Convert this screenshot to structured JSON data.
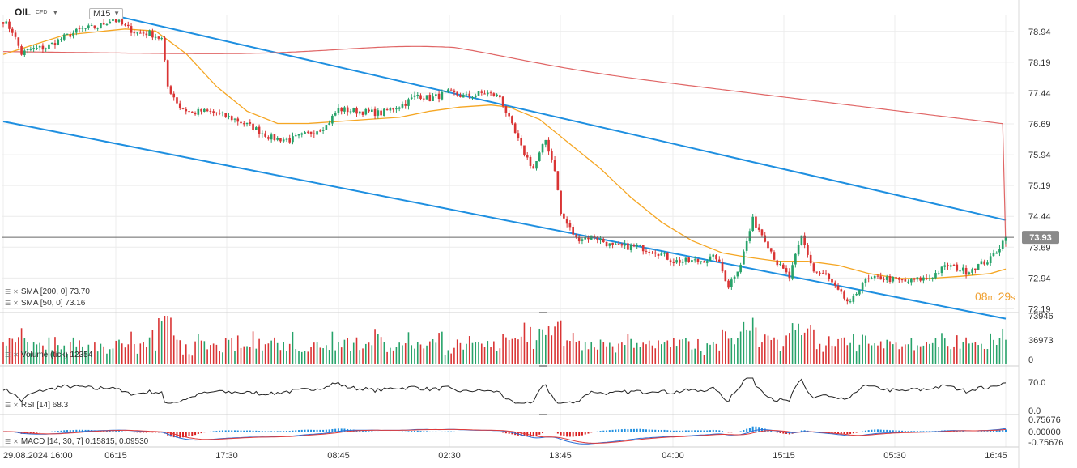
{
  "header": {
    "symbol": "OIL",
    "instrument_type": "CFD",
    "timeframe": "M15"
  },
  "price_badge": "73.93",
  "countdown": {
    "minutes": "08",
    "m": "m",
    "seconds": "29",
    "s": "s"
  },
  "legends": {
    "sma200": "SMA [200, 0] 73.70",
    "sma50": "SMA [50, 0] 73.16",
    "volume": "Volume (tick) 12354",
    "rsi": "RSI [14] 68.3",
    "macd": "MACD [14, 30, 7] 0.15815, 0.09530"
  },
  "colors": {
    "up": "#26a269",
    "down": "#d93434",
    "sma50": "#f5a623",
    "sma200": "#e06666",
    "channel": "#1e8fe0",
    "price_line": "#666666",
    "badge": "#8a8a8a"
  },
  "chart_data": [
    {
      "type": "candlestick",
      "title": "OIL CFD",
      "timeframe": "M15",
      "x_tick_labels": [
        "29.08.2024 16:00",
        "06:15",
        "17:30",
        "08:45",
        "02:30",
        "13:45",
        "04:00",
        "15:15",
        "05:30",
        "16:45"
      ],
      "y_tick_labels": [
        "78.94",
        "78.19",
        "77.44",
        "76.69",
        "75.94",
        "75.19",
        "74.44",
        "73.69",
        "72.94",
        "72.19"
      ],
      "ylim": [
        72.1,
        79.35
      ],
      "last_price": 73.93,
      "anchors": [
        [
          0,
          79.2
        ],
        [
          3,
          78.95
        ],
        [
          6,
          78.4
        ],
        [
          9,
          78.5
        ],
        [
          14,
          78.55
        ],
        [
          20,
          78.8
        ],
        [
          26,
          79.0
        ],
        [
          31,
          79.05
        ],
        [
          36,
          79.25
        ],
        [
          40,
          79.05
        ],
        [
          44,
          78.9
        ],
        [
          48,
          78.9
        ],
        [
          52,
          78.75
        ],
        [
          54,
          77.6
        ],
        [
          58,
          77.1
        ],
        [
          62,
          76.95
        ],
        [
          65,
          77.0
        ],
        [
          70,
          76.95
        ],
        [
          76,
          76.8
        ],
        [
          82,
          76.6
        ],
        [
          88,
          76.35
        ],
        [
          94,
          76.3
        ],
        [
          100,
          76.45
        ],
        [
          106,
          76.65
        ],
        [
          110,
          77.05
        ],
        [
          116,
          77.0
        ],
        [
          124,
          76.95
        ],
        [
          132,
          77.2
        ],
        [
          136,
          77.4
        ],
        [
          140,
          77.3
        ],
        [
          146,
          77.45
        ],
        [
          152,
          77.35
        ],
        [
          158,
          77.45
        ],
        [
          163,
          77.35
        ],
        [
          166,
          76.8
        ],
        [
          170,
          76.1
        ],
        [
          174,
          75.6
        ],
        [
          178,
          76.3
        ],
        [
          181,
          75.6
        ],
        [
          183,
          74.5
        ],
        [
          188,
          73.9
        ],
        [
          194,
          73.95
        ],
        [
          200,
          73.7
        ],
        [
          208,
          73.7
        ],
        [
          214,
          73.6
        ],
        [
          220,
          73.35
        ],
        [
          228,
          73.35
        ],
        [
          234,
          73.45
        ],
        [
          238,
          72.75
        ],
        [
          242,
          73.3
        ],
        [
          246,
          74.35
        ],
        [
          250,
          73.9
        ],
        [
          254,
          73.3
        ],
        [
          258,
          72.95
        ],
        [
          262,
          73.95
        ],
        [
          266,
          73.1
        ],
        [
          270,
          73.0
        ],
        [
          274,
          72.6
        ],
        [
          278,
          72.3
        ],
        [
          282,
          72.85
        ],
        [
          288,
          72.95
        ],
        [
          296,
          72.85
        ],
        [
          304,
          72.95
        ],
        [
          310,
          73.25
        ],
        [
          316,
          73.1
        ],
        [
          320,
          73.25
        ],
        [
          324,
          73.4
        ],
        [
          329,
          73.93
        ]
      ],
      "series": [
        {
          "name": "SMA [50, 0]",
          "value": 73.16
        },
        {
          "name": "SMA [200, 0]",
          "value": 73.7
        }
      ],
      "trend_channel": {
        "upper": [
          [
            38,
            79.3
          ],
          [
            329,
            74.35
          ]
        ],
        "lower": [
          [
            0,
            76.75
          ],
          [
            329,
            71.95
          ]
        ]
      },
      "sma50_points": [
        [
          0,
          78.38
        ],
        [
          20,
          78.85
        ],
        [
          40,
          79.0
        ],
        [
          50,
          78.95
        ],
        [
          60,
          78.4
        ],
        [
          70,
          77.6
        ],
        [
          80,
          77.0
        ],
        [
          90,
          76.7
        ],
        [
          100,
          76.7
        ],
        [
          110,
          76.75
        ],
        [
          120,
          76.8
        ],
        [
          130,
          76.85
        ],
        [
          140,
          77.0
        ],
        [
          150,
          77.1
        ],
        [
          160,
          77.15
        ],
        [
          166,
          77.1
        ],
        [
          176,
          76.8
        ],
        [
          186,
          76.2
        ],
        [
          196,
          75.6
        ],
        [
          206,
          74.9
        ],
        [
          216,
          74.3
        ],
        [
          226,
          73.85
        ],
        [
          236,
          73.55
        ],
        [
          244,
          73.45
        ],
        [
          254,
          73.35
        ],
        [
          264,
          73.35
        ],
        [
          274,
          73.25
        ],
        [
          284,
          73.05
        ],
        [
          294,
          72.93
        ],
        [
          304,
          72.93
        ],
        [
          314,
          72.98
        ],
        [
          324,
          73.05
        ],
        [
          329,
          73.16
        ]
      ]
    },
    {
      "type": "bar",
      "title": "Volume (tick)",
      "last_value": 12354,
      "y_tick_labels": [
        "73946",
        "36973",
        "0"
      ],
      "ylim": [
        0,
        73946
      ]
    },
    {
      "type": "line",
      "title": "RSI [14]",
      "last_value": 68.3,
      "y_tick_labels": [
        "70.0",
        "0.0"
      ]
    },
    {
      "type": "line",
      "title": "MACD [14, 30, 7]",
      "values": [
        0.15815,
        0.0953
      ],
      "y_tick_labels": [
        "0.75676",
        "0.00000",
        "-0.75676"
      ],
      "ylim": [
        -0.75676,
        0.75676
      ]
    }
  ]
}
